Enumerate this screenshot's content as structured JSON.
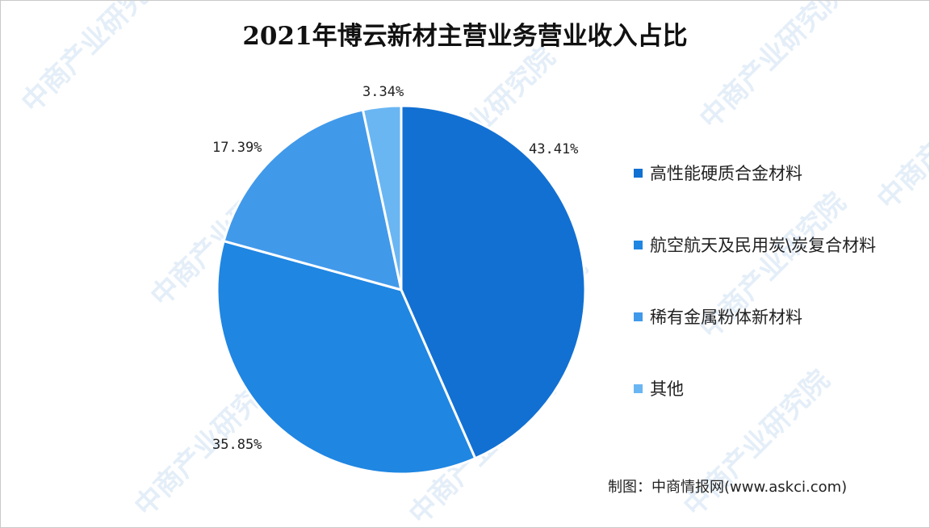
{
  "title": "2021年博云新材主营业务营业收入占比",
  "chart_data": {
    "type": "pie",
    "title": "2021年博云新材主营业务营业收入占比",
    "start_angle_deg": 0,
    "direction": "clockwise",
    "legend_position": "right",
    "slices": [
      {
        "name": "高性能硬质合金材料",
        "value": 43.41,
        "label": "43.41%",
        "color": "#1270d2"
      },
      {
        "name": "航空航天及民用炭\\炭复合材料",
        "value": 35.85,
        "label": "35.85%",
        "color": "#1f86e2"
      },
      {
        "name": "稀有金属粉体新材料",
        "value": 17.39,
        "label": "17.39%",
        "color": "#4199ea"
      },
      {
        "name": "其他",
        "value": 3.34,
        "label": "3.34%",
        "color": "#6ab6f3"
      }
    ]
  },
  "legend": {
    "items": [
      {
        "label": "高性能硬质合金材料",
        "color": "#1270d2"
      },
      {
        "label": "航空航天及民用炭\\炭复合材料",
        "color": "#1f86e2"
      },
      {
        "label": "稀有金属粉体新材料",
        "color": "#4199ea"
      },
      {
        "label": "其他",
        "color": "#6ab6f3"
      }
    ]
  },
  "source": "制图：中商情报网(www.askci.com)",
  "watermark": {
    "text": "中商产业研究院",
    "color": "#e4eef8"
  }
}
